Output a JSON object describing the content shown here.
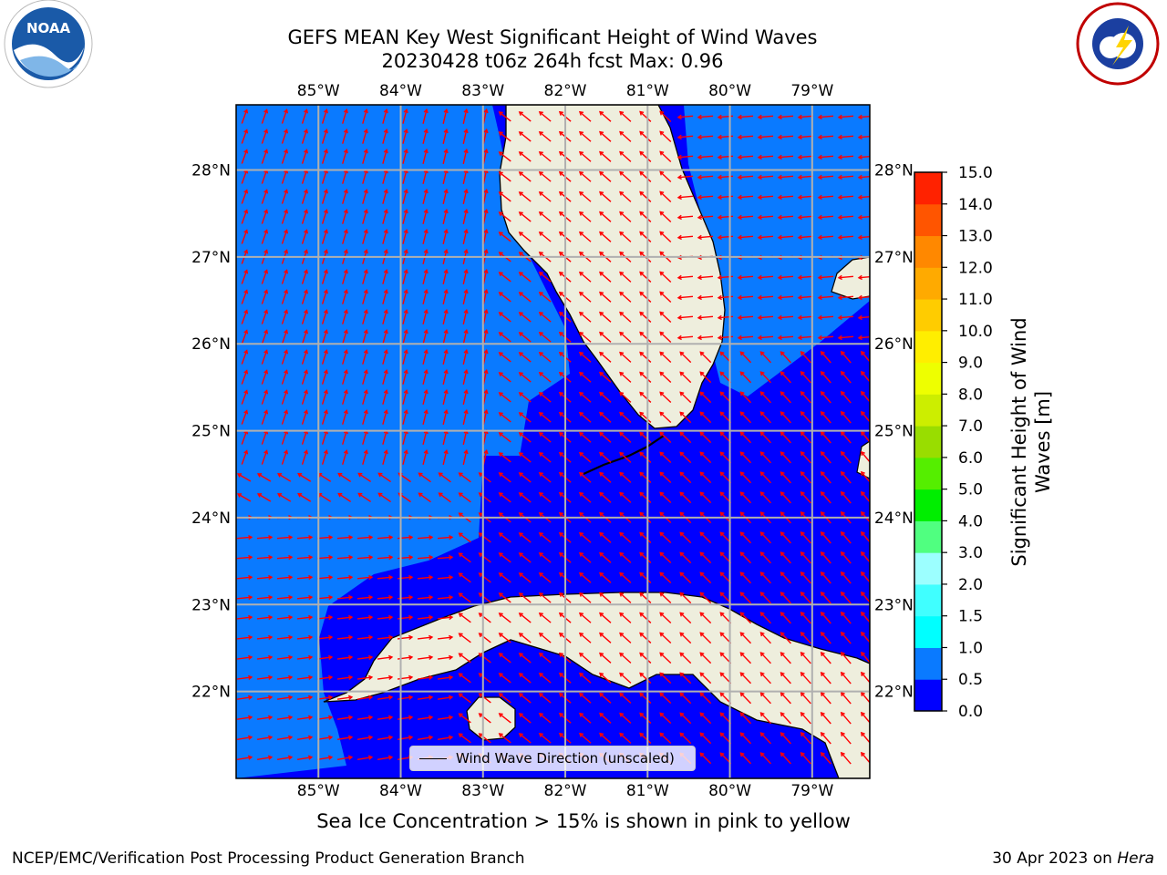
{
  "title_line1": "GEFS MEAN Key West Significant Height of Wind Waves",
  "title_line2": "20230428 t06z 264h fcst   Max: 0.96",
  "note": "Sea Ice Concentration > 15% is shown in pink to yellow",
  "footer_left": "NCEP/EMC/Verification Post Processing Product Generation Branch",
  "footer_date": "30 Apr 2023 on ",
  "footer_host": "Hera",
  "legend_label": "Wind Wave Direction (unscaled)",
  "logos": {
    "left": "NOAA",
    "right": "NATIONAL WEATHER SERVICE"
  },
  "map": {
    "lon_labels": [
      "85°W",
      "84°W",
      "83°W",
      "82°W",
      "81°W",
      "80°W",
      "79°W"
    ],
    "lat_labels": [
      "28°N",
      "27°N",
      "26°N",
      "25°N",
      "24°N",
      "23°N",
      "22°N"
    ],
    "lon_values": [
      -85,
      -84,
      -83,
      -82,
      -81,
      -80,
      -79
    ],
    "lat_values": [
      28,
      27,
      26,
      25,
      24,
      23,
      22
    ],
    "extent": {
      "lon_min": -86.0,
      "lon_max": -78.3,
      "lat_min": 21.0,
      "lat_max": 28.75
    },
    "colors": {
      "ocean_low": "#0000ff",
      "ocean_mid": "#0a7aff",
      "land": "#eeeedd",
      "arrow": "#ff0000",
      "grid": "#b0b0b0"
    }
  },
  "colorbar": {
    "title_line1": "Significant Height of Wind",
    "title_line2": "Waves [m]",
    "ticks": [
      "0.0",
      "0.5",
      "1.0",
      "1.5",
      "2.0",
      "3.0",
      "4.0",
      "5.0",
      "6.0",
      "7.0",
      "8.0",
      "9.0",
      "10.0",
      "11.0",
      "12.0",
      "13.0",
      "14.0",
      "15.0"
    ],
    "colors": [
      "#0000ff",
      "#0a7aff",
      "#00ffff",
      "#40ffff",
      "#9cffff",
      "#50ff80",
      "#00ee00",
      "#55ee00",
      "#99dd00",
      "#ccee00",
      "#eeff00",
      "#ffee00",
      "#ffcc00",
      "#ffaa00",
      "#ff8800",
      "#ff5500",
      "#ff2200"
    ]
  }
}
